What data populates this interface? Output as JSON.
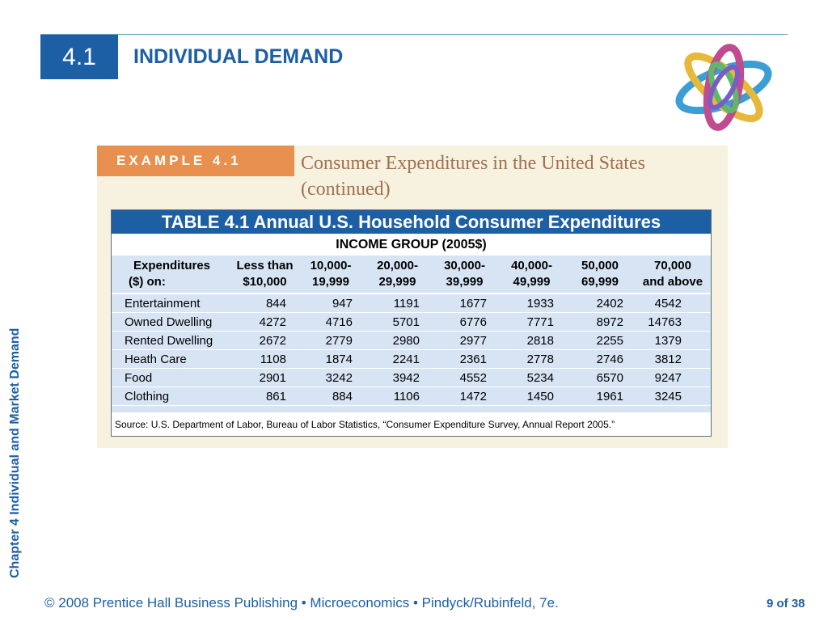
{
  "header": {
    "section_number": "4.1",
    "title": "INDIVIDUAL DEMAND"
  },
  "sidebar": {
    "chapter_label": "Chapter 4  Individual and Market Demand"
  },
  "example": {
    "tab_label": "EXAMPLE 4.1",
    "heading": "Consumer Expenditures in the United States (continued)"
  },
  "table": {
    "title": "TABLE 4.1 Annual U.S. Household Consumer Expenditures",
    "income_group": "INCOME GROUP (2005$)",
    "headers": [
      {
        "line1": "Expenditures",
        "line2": "($) on:"
      },
      {
        "line1": "Less than",
        "line2": "$10,000"
      },
      {
        "line1": "10,000-",
        "line2": "19,999"
      },
      {
        "line1": "20,000-",
        "line2": "29,999"
      },
      {
        "line1": "30,000-",
        "line2": "39,999"
      },
      {
        "line1": "40,000-",
        "line2": "49,999"
      },
      {
        "line1": "50,000",
        "line2": "69,999"
      },
      {
        "line1": "70,000",
        "line2": "and above"
      }
    ],
    "rows": [
      {
        "label": "Entertainment",
        "values": [
          "844",
          "947",
          "1191",
          "1677",
          "1933",
          "2402",
          "4542"
        ]
      },
      {
        "label": "Owned Dwelling",
        "values": [
          "4272",
          "4716",
          "5701",
          "6776",
          "7771",
          "8972",
          "14763"
        ]
      },
      {
        "label": "Rented Dwelling",
        "values": [
          "2672",
          "2779",
          "2980",
          "2977",
          "2818",
          "2255",
          "1379"
        ]
      },
      {
        "label": "Heath Care",
        "values": [
          "1108",
          "1874",
          "2241",
          "2361",
          "2778",
          "2746",
          "3812"
        ]
      },
      {
        "label": "Food",
        "values": [
          "2901",
          "3242",
          "3942",
          "4552",
          "5234",
          "6570",
          "9247"
        ]
      },
      {
        "label": "Clothing",
        "values": [
          "861",
          "884",
          "1106",
          "1472",
          "1450",
          "1961",
          "3245"
        ]
      }
    ],
    "source": "Source: U.S. Department of Labor, Bureau of Labor Statistics, “Consumer Expenditure Survey, Annual Report 2005.”"
  },
  "footer": {
    "copyright": "© 2008 Prentice Hall Business Publishing  •  Microeconomics  •  Pindyck/Rubinfeld, 7e.",
    "page": "9 of 38"
  },
  "colors": {
    "brand_blue": "#1d5fa4",
    "example_orange": "#e8904f",
    "table_row_bg": "#d7e4f4"
  }
}
